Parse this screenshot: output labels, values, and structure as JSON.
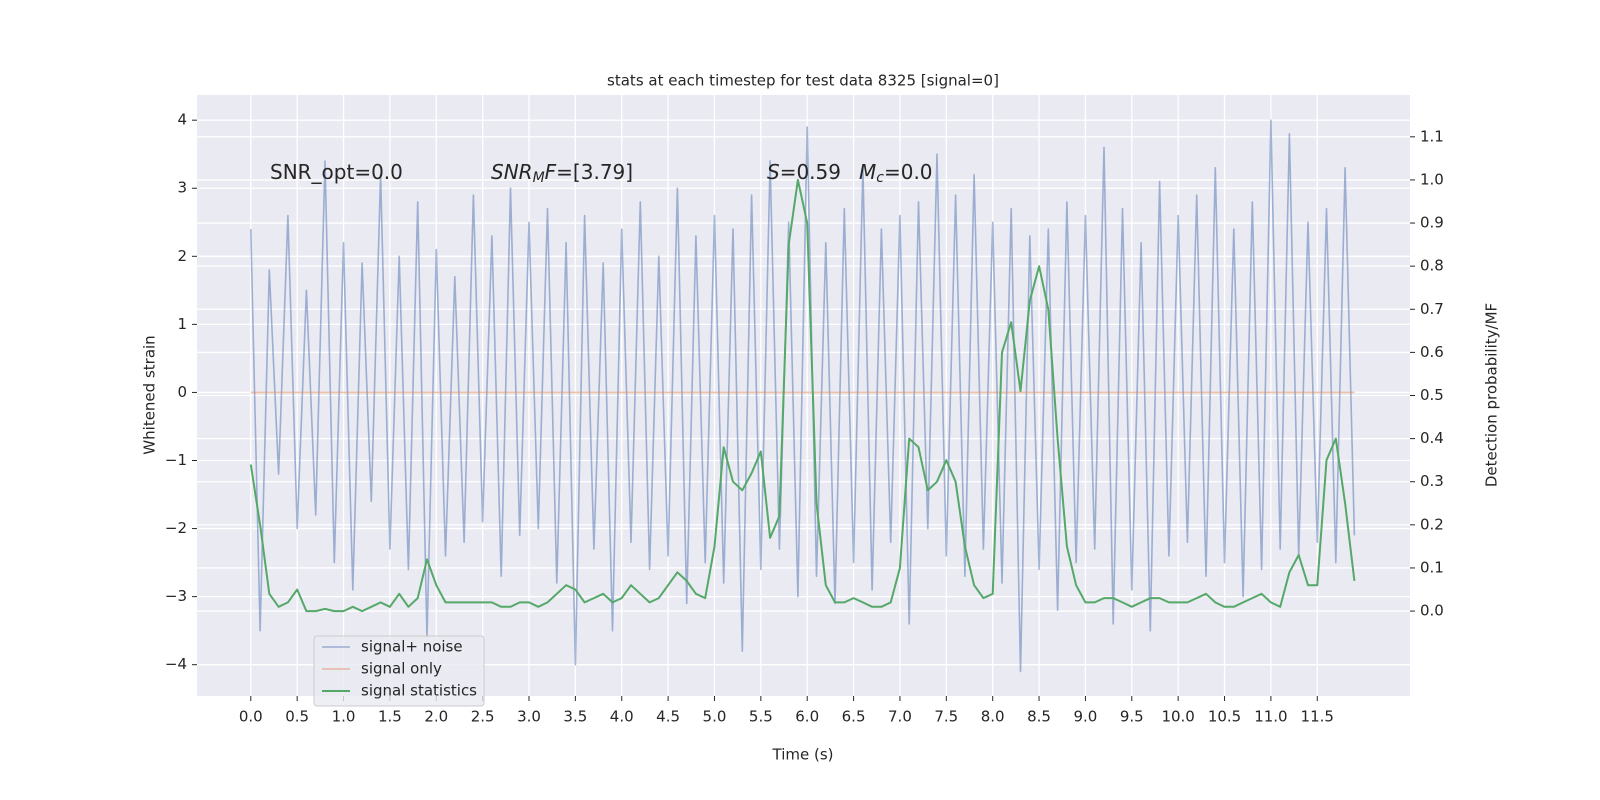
{
  "chart_data": {
    "type": "line",
    "title": "stats at each timestep for test data 8325 [signal=0]",
    "xlabel": "Time (s)",
    "ylabel": "Whitened strain",
    "y2label": "Detection probability/MF",
    "annotations": [
      [
        {
          "text": "SNR_opt=0.0",
          "style": "normal"
        }
      ],
      [
        {
          "text": "SNR",
          "style": "italic"
        },
        {
          "text": "M",
          "style": "sub"
        },
        {
          "text": "F",
          "style": "italic"
        },
        {
          "text": "=[3.79]",
          "style": "normal"
        }
      ],
      [
        {
          "text": "S",
          "style": "italic"
        },
        {
          "text": "=0.59",
          "style": "normal"
        }
      ],
      [
        {
          "text": "M",
          "style": "italic"
        },
        {
          "text": "c",
          "style": "sub"
        },
        {
          "text": "=0.0",
          "style": "normal"
        }
      ]
    ],
    "x": [
      0,
      0.1,
      0.2,
      0.3,
      0.4,
      0.5,
      0.6,
      0.7,
      0.8,
      0.9,
      1,
      1.1,
      1.2,
      1.3,
      1.4,
      1.5,
      1.6,
      1.7,
      1.8,
      1.9,
      2,
      2.1,
      2.2,
      2.3,
      2.4,
      2.5,
      2.6,
      2.7,
      2.8,
      2.9,
      3,
      3.1,
      3.2,
      3.3,
      3.4,
      3.5,
      3.6,
      3.7,
      3.8,
      3.9,
      4,
      4.1,
      4.2,
      4.3,
      4.4,
      4.5,
      4.6,
      4.7,
      4.8,
      4.9,
      5,
      5.1,
      5.2,
      5.3,
      5.4,
      5.5,
      5.6,
      5.7,
      5.8,
      5.9,
      6,
      6.1,
      6.2,
      6.3,
      6.4,
      6.5,
      6.6,
      6.7,
      6.8,
      6.9,
      7,
      7.1,
      7.2,
      7.3,
      7.4,
      7.5,
      7.6,
      7.7,
      7.8,
      7.9,
      8,
      8.1,
      8.2,
      8.3,
      8.4,
      8.5,
      8.6,
      8.7,
      8.8,
      8.9,
      9,
      9.1,
      9.2,
      9.3,
      9.4,
      9.5,
      9.6,
      9.7,
      9.8,
      9.9,
      10,
      10.1,
      10.2,
      10.3,
      10.4,
      10.5,
      10.6,
      10.7,
      10.8,
      10.9,
      11,
      11.1,
      11.2,
      11.3,
      11.4,
      11.5,
      11.6,
      11.7,
      11.8,
      11.9
    ],
    "series": [
      {
        "name": "signal+ noise",
        "color": "#4c72b0",
        "axis": "y",
        "values": [
          2.4,
          -3.5,
          1.8,
          -1.2,
          2.6,
          -2.0,
          1.5,
          -1.8,
          3.4,
          -2.5,
          2.2,
          -2.9,
          1.9,
          -1.6,
          3.2,
          -2.3,
          2.0,
          -2.6,
          2.8,
          -3.6,
          2.1,
          -2.4,
          1.7,
          -2.2,
          2.9,
          -1.9,
          2.3,
          -2.7,
          3.0,
          -2.1,
          2.5,
          -2.0,
          2.7,
          -2.8,
          2.2,
          -4.0,
          2.6,
          -2.3,
          1.9,
          -3.5,
          2.4,
          -2.2,
          2.8,
          -2.6,
          2.0,
          -2.4,
          3.0,
          -3.1,
          2.3,
          -2.5,
          2.6,
          -2.8,
          2.4,
          -3.8,
          2.9,
          -2.6,
          3.4,
          -2.3,
          2.5,
          -3.0,
          3.9,
          -2.7,
          2.2,
          -3.1,
          2.7,
          -2.5,
          3.3,
          -2.9,
          2.4,
          -2.2,
          2.6,
          -3.4,
          2.8,
          -2.0,
          3.5,
          -2.4,
          2.9,
          -2.7,
          3.2,
          -2.3,
          2.5,
          -2.8,
          2.7,
          -4.1,
          2.3,
          -2.6,
          2.4,
          -3.2,
          2.8,
          -2.5,
          2.6,
          -2.3,
          3.6,
          -3.4,
          2.7,
          -2.9,
          2.2,
          -3.5,
          3.1,
          -2.4,
          2.6,
          -2.2,
          2.9,
          -2.7,
          3.3,
          -2.5,
          2.4,
          -3.0,
          2.8,
          -2.6,
          4.0,
          -2.3,
          3.8,
          -2.4,
          2.5,
          -2.2,
          2.7,
          -2.5,
          3.3,
          -2.1
        ]
      },
      {
        "name": "signal only",
        "color": "#dd8452",
        "axis": "y",
        "values": [
          0,
          0,
          0,
          0,
          0,
          0,
          0,
          0,
          0,
          0,
          0,
          0,
          0,
          0,
          0,
          0,
          0,
          0,
          0,
          0,
          0,
          0,
          0,
          0,
          0,
          0,
          0,
          0,
          0,
          0,
          0,
          0,
          0,
          0,
          0,
          0,
          0,
          0,
          0,
          0,
          0,
          0,
          0,
          0,
          0,
          0,
          0,
          0,
          0,
          0,
          0,
          0,
          0,
          0,
          0,
          0,
          0,
          0,
          0,
          0,
          0,
          0,
          0,
          0,
          0,
          0,
          0,
          0,
          0,
          0,
          0,
          0,
          0,
          0,
          0,
          0,
          0,
          0,
          0,
          0,
          0,
          0,
          0,
          0,
          0,
          0,
          0,
          0,
          0,
          0,
          0,
          0,
          0,
          0,
          0,
          0,
          0,
          0,
          0,
          0,
          0,
          0,
          0,
          0,
          0,
          0,
          0,
          0,
          0,
          0,
          0,
          0,
          0,
          0,
          0,
          0,
          0,
          0,
          0,
          0
        ]
      },
      {
        "name": "signal statistics",
        "color": "#55a868",
        "axis": "y2",
        "values": [
          0.34,
          0.2,
          0.04,
          0.01,
          0.02,
          0.05,
          0.0,
          0.0,
          0.005,
          0.0,
          0.0,
          0.01,
          0.0,
          0.01,
          0.02,
          0.01,
          0.04,
          0.01,
          0.03,
          0.12,
          0.06,
          0.02,
          0.02,
          0.02,
          0.02,
          0.02,
          0.02,
          0.01,
          0.01,
          0.02,
          0.02,
          0.01,
          0.02,
          0.04,
          0.06,
          0.05,
          0.02,
          0.03,
          0.04,
          0.02,
          0.03,
          0.06,
          0.04,
          0.02,
          0.03,
          0.06,
          0.09,
          0.07,
          0.04,
          0.03,
          0.15,
          0.38,
          0.3,
          0.28,
          0.32,
          0.37,
          0.17,
          0.22,
          0.85,
          1.0,
          0.9,
          0.25,
          0.06,
          0.02,
          0.02,
          0.03,
          0.02,
          0.01,
          0.01,
          0.02,
          0.1,
          0.4,
          0.38,
          0.28,
          0.3,
          0.35,
          0.3,
          0.15,
          0.06,
          0.03,
          0.04,
          0.6,
          0.67,
          0.51,
          0.72,
          0.8,
          0.7,
          0.4,
          0.15,
          0.06,
          0.02,
          0.02,
          0.03,
          0.03,
          0.02,
          0.01,
          0.02,
          0.03,
          0.03,
          0.02,
          0.02,
          0.02,
          0.03,
          0.04,
          0.02,
          0.01,
          0.01,
          0.02,
          0.03,
          0.04,
          0.02,
          0.01,
          0.09,
          0.13,
          0.06,
          0.06,
          0.35,
          0.4,
          0.25,
          0.07
        ]
      }
    ],
    "xlim": [
      -0.58,
      12.5
    ],
    "xticks": [
      {
        "value": 0,
        "label": "0.0"
      },
      0.5,
      {
        "value": 1,
        "label": "1.0"
      },
      1.5,
      {
        "value": 2,
        "label": "2.0"
      },
      2.5,
      {
        "value": 3,
        "label": "3.0"
      },
      3.5,
      {
        "value": 4,
        "label": "4.0"
      },
      4.5,
      {
        "value": 5,
        "label": "5.0"
      },
      5.5,
      {
        "value": 6,
        "label": "6.0"
      },
      6.5,
      {
        "value": 7,
        "label": "7.0"
      },
      7.5,
      {
        "value": 8,
        "label": "8.0"
      },
      8.5,
      {
        "value": 9,
        "label": "9.0"
      },
      9.5,
      {
        "value": 10,
        "label": "10.0"
      },
      10.5,
      {
        "value": 11,
        "label": "11.0"
      },
      11.5
    ],
    "ylim": [
      -4.46,
      4.37
    ],
    "yticks": [
      {
        "value": -4,
        "label": "−4"
      },
      {
        "value": -3,
        "label": "−3"
      },
      {
        "value": -2,
        "label": "−2"
      },
      {
        "value": -1,
        "label": "−1"
      },
      0,
      1,
      2,
      3,
      4
    ],
    "y2lim": [
      -0.197,
      1.197
    ],
    "y2ticks": [
      {
        "value": 0,
        "label": "0.0"
      },
      0.1,
      0.2,
      0.3,
      0.4,
      0.5,
      0.6,
      0.7,
      0.8,
      0.9,
      {
        "value": 1,
        "label": "1.0"
      },
      1.1
    ],
    "grid": true,
    "legend": "lower left"
  }
}
